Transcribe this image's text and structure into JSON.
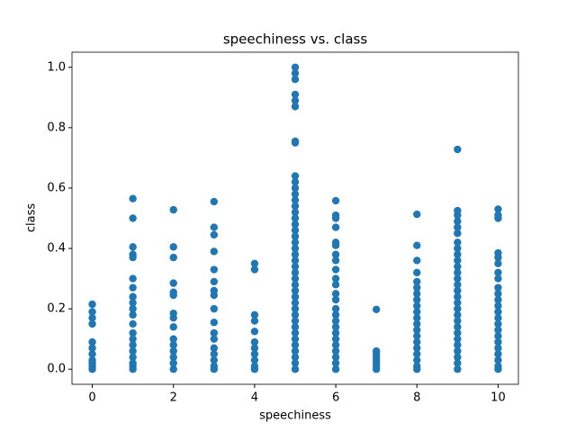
{
  "chart_data": {
    "type": "scatter",
    "title": "speechiness vs. class",
    "x_label": "speechiness",
    "y_label": "class",
    "color": "#1f77b4",
    "x": [
      0,
      0,
      0,
      0,
      0,
      0,
      0,
      0,
      0,
      0,
      0,
      1,
      1,
      1,
      1,
      1,
      1,
      1,
      1,
      1,
      1,
      1,
      1,
      1,
      1,
      1,
      1,
      1,
      1,
      1,
      1,
      2,
      2,
      2,
      2,
      2,
      2,
      2,
      2,
      2,
      2,
      2,
      2,
      2,
      2,
      2,
      3,
      3,
      3,
      3,
      3,
      3,
      3,
      3,
      3,
      3,
      3,
      3,
      3,
      3,
      3,
      3,
      3,
      4,
      4,
      4,
      4,
      4,
      4,
      4,
      4,
      4,
      4,
      4,
      5,
      5,
      5,
      5,
      5,
      5,
      5,
      5,
      5,
      5,
      5,
      5,
      5,
      5,
      5,
      5,
      5,
      5,
      5,
      5,
      5,
      5,
      5,
      5,
      5,
      5,
      5,
      5,
      5,
      5,
      5,
      5,
      5,
      5,
      5,
      5,
      5,
      5,
      5,
      5,
      5,
      6,
      6,
      6,
      6,
      6,
      6,
      6,
      6,
      6,
      6,
      6,
      6,
      6,
      6,
      6,
      6,
      6,
      6,
      6,
      6,
      6,
      6,
      6,
      6,
      7,
      7,
      7,
      7,
      7,
      7,
      7,
      7,
      8,
      8,
      8,
      8,
      8,
      8,
      8,
      8,
      8,
      8,
      8,
      8,
      8,
      8,
      8,
      8,
      8,
      8,
      8,
      8,
      9,
      9,
      9,
      9,
      9,
      9,
      9,
      9,
      9,
      9,
      9,
      9,
      9,
      9,
      9,
      9,
      9,
      9,
      9,
      9,
      9,
      9,
      9,
      9,
      9,
      9,
      9,
      9,
      10,
      10,
      10,
      10,
      10,
      10,
      10,
      10,
      10,
      10,
      10,
      10,
      10,
      10,
      10,
      10,
      10,
      10,
      10,
      10,
      10,
      10,
      10
    ],
    "values": [
      0.215,
      0.19,
      0.17,
      0.15,
      0.09,
      0.07,
      0.05,
      0.03,
      0.02,
      0.01,
      0,
      0.565,
      0.5,
      0.405,
      0.38,
      0.37,
      0.3,
      0.27,
      0.24,
      0.22,
      0.2,
      0.18,
      0.15,
      0.12,
      0.1,
      0.08,
      0.06,
      0.04,
      0.02,
      0.01,
      0,
      0.528,
      0.405,
      0.37,
      0.285,
      0.255,
      0.245,
      0.185,
      0.17,
      0.14,
      0.1,
      0.08,
      0.06,
      0.04,
      0.02,
      0,
      0.555,
      0.47,
      0.445,
      0.39,
      0.33,
      0.29,
      0.26,
      0.245,
      0.2,
      0.155,
      0.12,
      0.1,
      0.07,
      0.05,
      0.03,
      0.01,
      0,
      0.35,
      0.33,
      0.18,
      0.16,
      0.125,
      0.09,
      0.07,
      0.05,
      0.03,
      0.01,
      0,
      1.0,
      0.98,
      0.96,
      0.91,
      0.89,
      0.87,
      0.755,
      0.75,
      0.64,
      0.62,
      0.6,
      0.58,
      0.56,
      0.54,
      0.52,
      0.5,
      0.48,
      0.46,
      0.44,
      0.42,
      0.4,
      0.38,
      0.36,
      0.34,
      0.32,
      0.3,
      0.28,
      0.26,
      0.24,
      0.22,
      0.2,
      0.18,
      0.16,
      0.14,
      0.12,
      0.1,
      0.08,
      0.06,
      0.04,
      0.02,
      0,
      0.558,
      0.51,
      0.5,
      0.47,
      0.42,
      0.41,
      0.38,
      0.36,
      0.33,
      0.3,
      0.28,
      0.25,
      0.23,
      0.2,
      0.18,
      0.16,
      0.14,
      0.12,
      0.1,
      0.08,
      0.06,
      0.04,
      0.02,
      0,
      0.198,
      0.06,
      0.05,
      0.04,
      0.03,
      0.02,
      0.01,
      0,
      0.513,
      0.41,
      0.36,
      0.32,
      0.29,
      0.27,
      0.25,
      0.23,
      0.21,
      0.19,
      0.17,
      0.15,
      0.13,
      0.11,
      0.09,
      0.07,
      0.05,
      0.03,
      0.01,
      0,
      0.728,
      0.525,
      0.51,
      0.49,
      0.47,
      0.45,
      0.42,
      0.4,
      0.38,
      0.36,
      0.34,
      0.32,
      0.3,
      0.28,
      0.26,
      0.24,
      0.22,
      0.2,
      0.18,
      0.16,
      0.14,
      0.12,
      0.1,
      0.08,
      0.06,
      0.04,
      0.02,
      0,
      0.53,
      0.51,
      0.5,
      0.385,
      0.37,
      0.35,
      0.32,
      0.3,
      0.27,
      0.25,
      0.23,
      0.21,
      0.19,
      0.17,
      0.15,
      0.13,
      0.11,
      0.09,
      0.07,
      0.05,
      0.03,
      0.01,
      0
    ],
    "xlim": [
      -0.5,
      10.5
    ],
    "xticks": [
      0,
      2,
      4,
      6,
      8,
      10
    ],
    "ylim": [
      -0.05,
      1.05
    ],
    "yticks": [
      {
        "value": 0,
        "label": "0.0"
      },
      0.2,
      0.4,
      0.6,
      0.8,
      {
        "value": 1,
        "label": "1.0"
      }
    ]
  }
}
